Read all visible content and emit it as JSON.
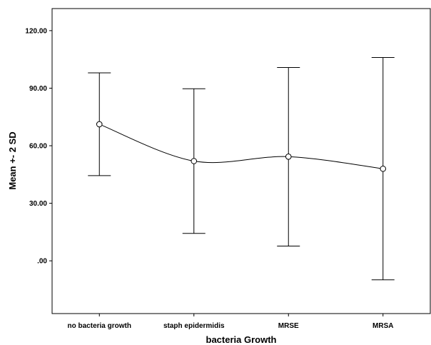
{
  "chart_data": {
    "type": "line",
    "title": "",
    "xlabel": "bacteria Growth",
    "ylabel": "Mean +- 2 SD",
    "categories": [
      "no bacteria growth",
      "staph epidermidis",
      "MRSE",
      "MRSA"
    ],
    "series": [
      {
        "mean": [
          71.2,
          52.0,
          54.3,
          48.0
        ],
        "upper": [
          98.0,
          89.7,
          100.8,
          106.0
        ],
        "lower": [
          44.4,
          14.3,
          7.7,
          -9.9
        ]
      }
    ],
    "ylim": [
      -27.5,
      131.5
    ],
    "yticks": [
      0,
      30,
      60,
      90,
      120
    ],
    "ytick_labels": [
      ".00",
      "30.00",
      "60.00",
      "90.00",
      "120.00"
    ],
    "grid": false,
    "legend": "none",
    "colors": {
      "line": "#000000",
      "marker_fill": "#ffffff",
      "axis": "#000000"
    }
  }
}
